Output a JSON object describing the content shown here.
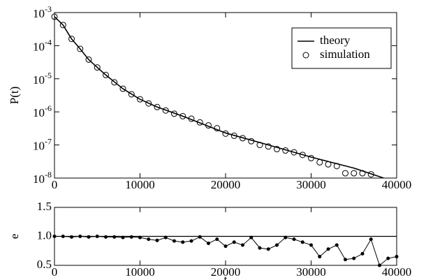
{
  "chart_data": [
    {
      "type": "line",
      "y_label": "P(t)",
      "ylog": true,
      "legend": "upper right",
      "xlim": [
        0,
        40000
      ],
      "xticks": [
        0,
        10000,
        20000,
        30000,
        40000
      ],
      "ylim": [
        1e-08,
        0.001
      ],
      "yticks": [
        {
          "value": 1e-08,
          "label": "10^-8"
        },
        {
          "value": 1e-07,
          "label": "10^-7"
        },
        {
          "value": 1e-06,
          "label": "10^-6"
        },
        {
          "value": 1e-05,
          "label": "10^-5"
        },
        {
          "value": 0.0001,
          "label": "10^-4"
        },
        {
          "value": 0.001,
          "label": "10^-3"
        }
      ],
      "series": [
        {
          "name": "theory",
          "color": "#000000",
          "style": "line",
          "x": [
            0,
            1000,
            2000,
            3000,
            4000,
            5000,
            6000,
            8000,
            10000,
            12000,
            15000,
            20000,
            25000,
            30000,
            35000,
            38000,
            39000
          ],
          "values": [
            0.00075,
            0.00042,
            0.00016,
            8e-05,
            3.8e-05,
            2.2e-05,
            1.3e-05,
            5e-06,
            2.4e-06,
            1.4e-06,
            7.4e-07,
            2.3e-07,
            1e-07,
            4.3e-08,
            2e-08,
            1.1e-08,
            9e-09
          ]
        },
        {
          "name": "simulation",
          "color": "#000000",
          "style": "markers",
          "x": [
            0,
            1000,
            2000,
            3000,
            4000,
            5000,
            6000,
            7000,
            8000,
            9000,
            10000,
            11000,
            12000,
            13000,
            14000,
            15000,
            16000,
            17000,
            18000,
            19000,
            20000,
            21000,
            22000,
            23000,
            24000,
            25000,
            26000,
            27000,
            28000,
            29000,
            30000,
            31000,
            32000,
            33000,
            34000,
            35000,
            36000,
            37000
          ],
          "values": [
            0.00075,
            0.00042,
            0.00016,
            8e-05,
            3.8e-05,
            2.2e-05,
            1.3e-05,
            7.8e-06,
            5e-06,
            3.4e-06,
            2.4e-06,
            1.8e-06,
            1.4e-06,
            1.1e-06,
            8.8e-07,
            7.4e-07,
            6.2e-07,
            4.8e-07,
            3.9e-07,
            3.2e-07,
            2.2e-07,
            1.9e-07,
            1.6e-07,
            1.3e-07,
            1e-07,
            9e-08,
            7.5e-08,
            6.8e-08,
            6e-08,
            5e-08,
            4e-08,
            3e-08,
            2.6e-08,
            2.3e-08,
            1.4e-08,
            1.4e-08,
            1.4e-08,
            1.3e-08
          ]
        }
      ]
    },
    {
      "type": "line",
      "x_label": "t",
      "y_label": "e",
      "xlim": [
        0,
        40000
      ],
      "xticks": [
        0,
        10000,
        20000,
        30000,
        40000
      ],
      "ylim": [
        0.5,
        1.5
      ],
      "yticks": [
        0.5,
        {
          "value": 1,
          "label": "1.0"
        },
        1.5
      ],
      "hline": 1,
      "series": [
        {
          "color": "#000000",
          "style": "line-markers",
          "x": [
            0,
            1000,
            2000,
            3000,
            4000,
            5000,
            6000,
            7000,
            8000,
            9000,
            10000,
            11000,
            12000,
            13000,
            14000,
            15000,
            16000,
            17000,
            18000,
            19000,
            20000,
            21000,
            22000,
            23000,
            24000,
            25000,
            26000,
            27000,
            28000,
            29000,
            30000,
            31000,
            32000,
            33000,
            34000,
            35000,
            36000,
            37000,
            38000,
            39000,
            40000
          ],
          "values": [
            1,
            1,
            0.99,
            1,
            0.99,
            1,
            0.99,
            0.99,
            0.98,
            0.99,
            0.98,
            0.95,
            0.93,
            0.98,
            0.92,
            0.9,
            0.92,
            0.99,
            0.88,
            0.95,
            0.83,
            0.9,
            0.85,
            0.98,
            0.8,
            0.78,
            0.85,
            0.98,
            0.95,
            0.9,
            0.85,
            0.65,
            0.78,
            0.85,
            0.6,
            0.62,
            0.7,
            0.95,
            0.5,
            0.62,
            0.65
          ]
        }
      ]
    }
  ]
}
